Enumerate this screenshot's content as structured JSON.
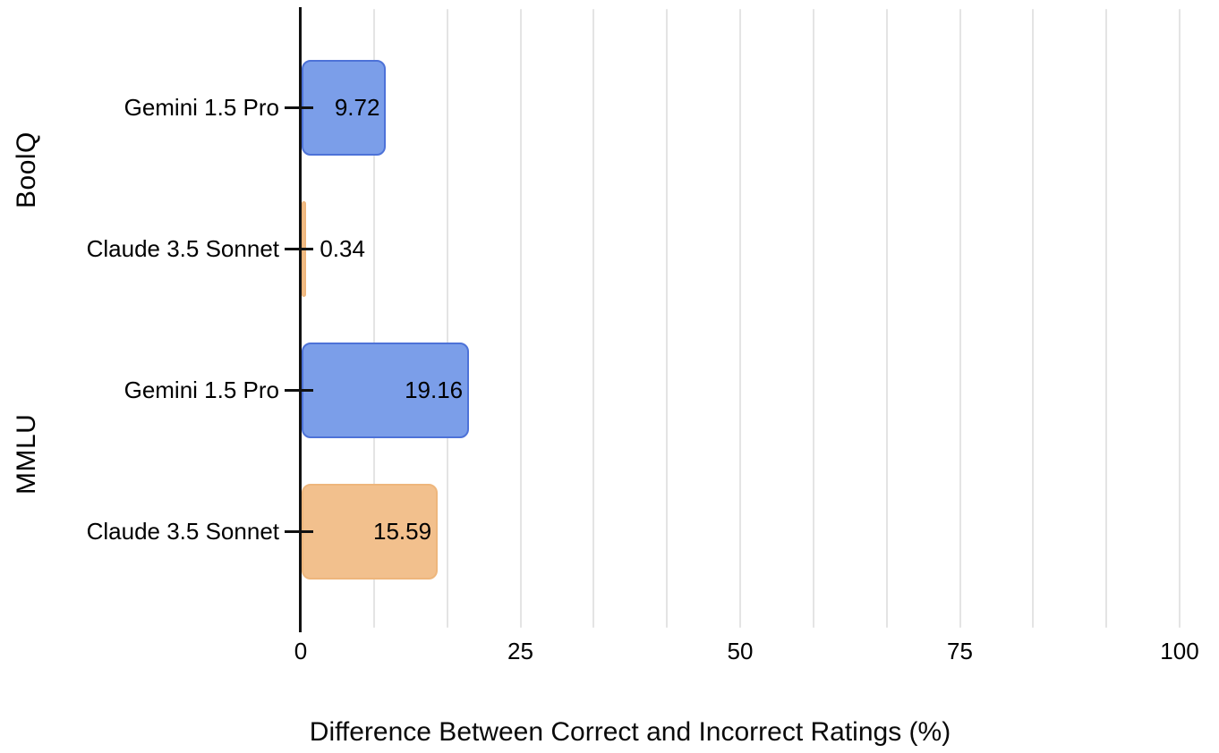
{
  "chart_data": {
    "type": "bar",
    "orientation": "horizontal",
    "xlabel": "Difference Between Correct and Incorrect Ratings (%)",
    "xlim": [
      0,
      100
    ],
    "x_ticks": [
      "0",
      "25",
      "50",
      "75",
      "100"
    ],
    "x_tick_values": [
      0,
      25,
      50,
      75,
      100
    ],
    "gridline_divisions": 12,
    "grid": true,
    "legend": false,
    "groups": [
      {
        "label": "BoolQ",
        "bars": [
          {
            "category": "Gemini 1.5 Pro",
            "value": 9.72,
            "value_label": "9.72",
            "color": "blue"
          },
          {
            "category": "Claude 3.5 Sonnet",
            "value": 0.34,
            "value_label": "0.34",
            "color": "orange"
          }
        ]
      },
      {
        "label": "MMLU",
        "bars": [
          {
            "category": "Gemini 1.5 Pro",
            "value": 19.16,
            "value_label": "19.16",
            "color": "blue"
          },
          {
            "category": "Claude 3.5 Sonnet",
            "value": 15.59,
            "value_label": "15.59",
            "color": "orange"
          }
        ]
      }
    ],
    "colors": {
      "blue_fill": "#7b9ee9",
      "blue_stroke": "#4d72d8",
      "orange_fill": "#f2c08d",
      "orange_stroke": "#eeb67c",
      "gridline": "#e4e4e4",
      "axis_line": "#111111",
      "text": "#000000"
    }
  }
}
